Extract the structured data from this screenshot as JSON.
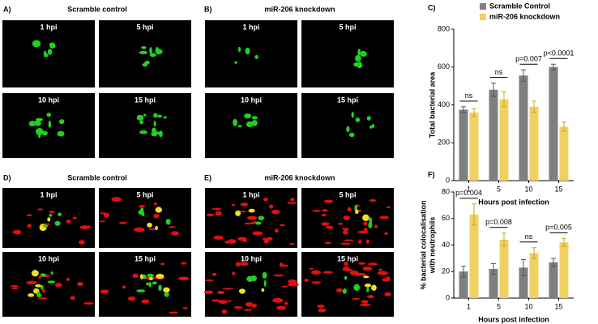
{
  "panels": [
    {
      "label": "A)",
      "title": "Scramble control",
      "images": [
        "1 hpi",
        "5 hpi",
        "10 hpi",
        "15 hpi"
      ]
    },
    {
      "label": "B)",
      "title": "miR-206 knockdown",
      "images": [
        "1 hpi",
        "5 hpi",
        "10 hpi",
        "15 hpi"
      ]
    },
    {
      "label": "D)",
      "title": "Scramble control",
      "images": [
        "1 hpi",
        "5 hpi",
        "10 hpi",
        "15 hpi"
      ]
    },
    {
      "label": "E)",
      "title": "miR-206 knockdown",
      "images": [
        "1 hpi",
        "5 hpi",
        "10 hpi",
        "15 hpi"
      ]
    }
  ],
  "chart_data": [
    {
      "type": "bar",
      "label": "C)",
      "ylabel": [
        "Total bacterial area"
      ],
      "xlabel": "Hours post infection",
      "categories": [
        "1",
        "5",
        "10",
        "15"
      ],
      "series": [
        {
          "name": "Scramble Control",
          "color": "#7f7f7f",
          "values": [
            375,
            480,
            555,
            600
          ],
          "errors": [
            15,
            35,
            30,
            15
          ]
        },
        {
          "name": "miR-206 knockdown",
          "color": "#f0d060",
          "values": [
            360,
            430,
            390,
            285
          ],
          "errors": [
            20,
            40,
            30,
            25
          ]
        }
      ],
      "annotations": [
        "ns",
        "ns",
        "p=0.007",
        "p<0.0001"
      ],
      "ylim": [
        0,
        800
      ],
      "yticks": [
        0,
        200,
        400,
        600,
        800
      ],
      "legend": "top"
    },
    {
      "type": "bar",
      "label": "F)",
      "ylabel": [
        "% bacterial colocalisation",
        "with neutrophils"
      ],
      "xlabel": "Hours post infection",
      "categories": [
        "1",
        "5",
        "10",
        "15"
      ],
      "series": [
        {
          "name": "Scramble Control",
          "color": "#7f7f7f",
          "values": [
            20,
            22,
            23,
            27
          ],
          "errors": [
            4,
            4,
            6,
            3
          ]
        },
        {
          "name": "miR-206 knockdown",
          "color": "#f0d060",
          "values": [
            63,
            44,
            34,
            42
          ],
          "errors": [
            8,
            5,
            4,
            3
          ]
        }
      ],
      "annotations": [
        "p=0.004",
        "p=0.008",
        "ns",
        "p=0.005"
      ],
      "ylim": [
        0,
        80
      ],
      "yticks": [
        0,
        20,
        40,
        60,
        80
      ]
    }
  ]
}
